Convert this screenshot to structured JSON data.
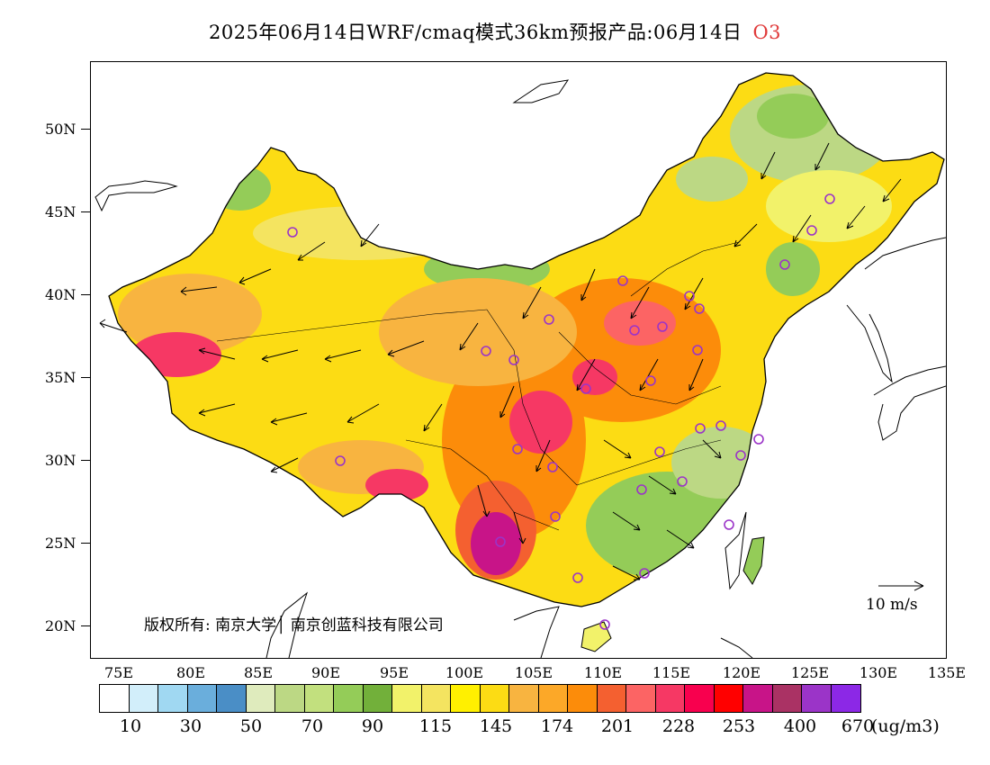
{
  "title": {
    "text": "2025年06月14日WRF/cmaq模式36km预报产品:06月14日",
    "species": "O3"
  },
  "axes": {
    "lat_labels": [
      "50N",
      "45N",
      "40N",
      "35N",
      "30N",
      "25N",
      "20N"
    ],
    "lon_labels": [
      "75E",
      "80E",
      "85E",
      "90E",
      "95E",
      "100E",
      "105E",
      "110E",
      "115E",
      "120E",
      "125E",
      "130E",
      "135E"
    ]
  },
  "copyright": "版权所有: 南京大学│ 南京创蓝科技有限公司",
  "wind_reference": "10 m/s",
  "colorbar": {
    "colors": [
      "#ffffff",
      "#d2eefa",
      "#a0d8f2",
      "#6aaedc",
      "#4a8ec6",
      "#dfebbd",
      "#bcd884",
      "#c2e07e",
      "#94cc58",
      "#72b03a",
      "#f2f26a",
      "#f4e460",
      "#fff000",
      "#fcdc14",
      "#f8b440",
      "#fca828",
      "#fc8c0a",
      "#f46030",
      "#fc6464",
      "#f63864",
      "#f8004e",
      "#ff0000",
      "#c81488",
      "#aa3264",
      "#9b34c8",
      "#8c28e6"
    ],
    "labels": [
      "10",
      "30",
      "50",
      "70",
      "90",
      "115",
      "145",
      "174",
      "201",
      "228",
      "253",
      "400",
      "670"
    ],
    "unit": "(ug/m3)"
  }
}
